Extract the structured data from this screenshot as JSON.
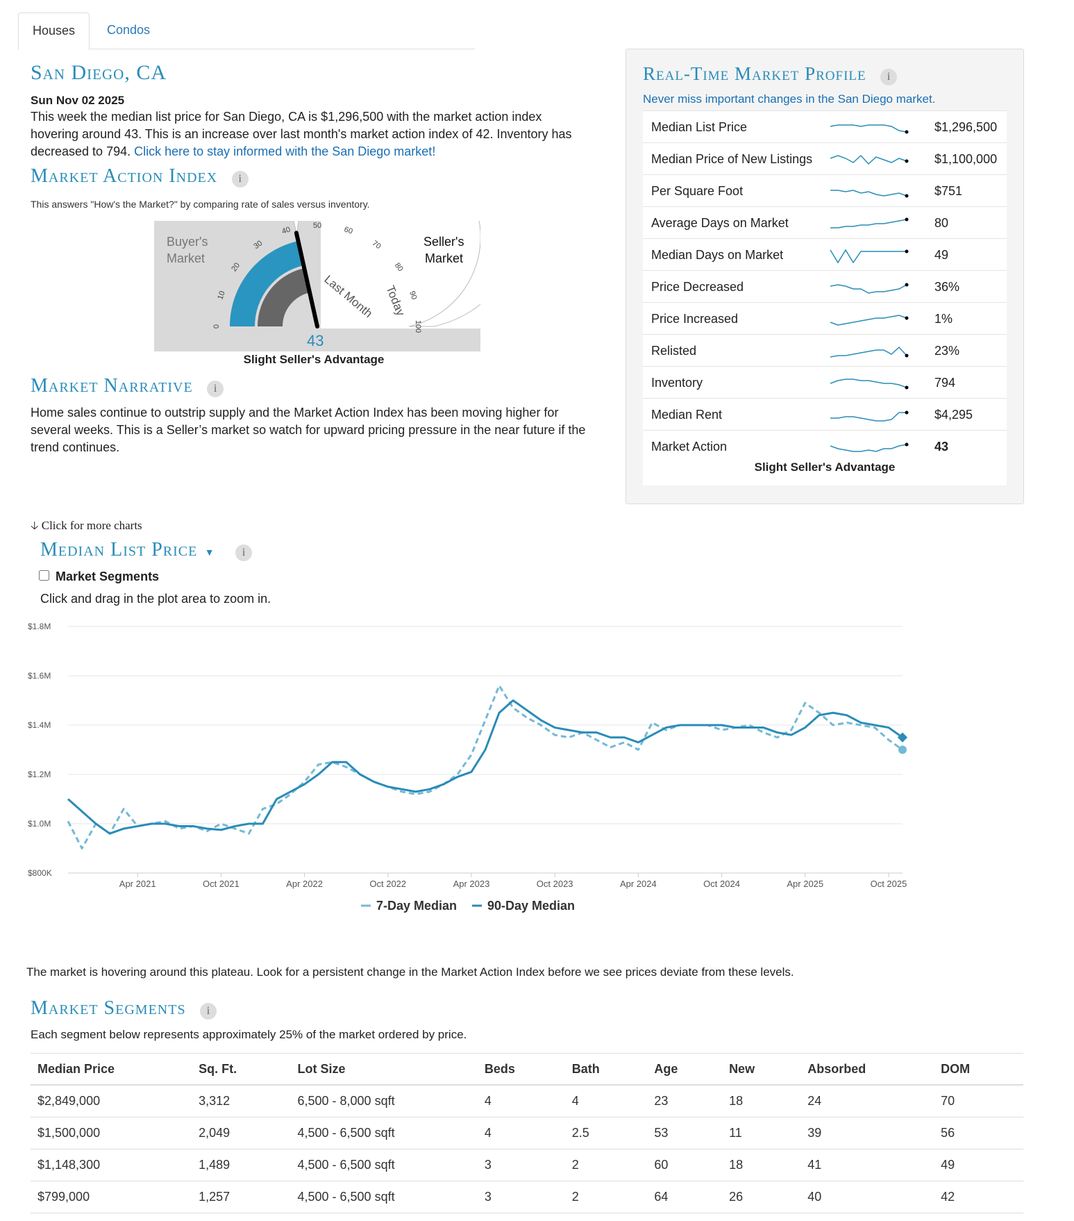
{
  "tabs": [
    "Houses",
    "Condos"
  ],
  "city_title": "San Diego, CA",
  "date": "Sun Nov 02 2025",
  "summary": "This week the median list price for San Diego, CA is $1,296,500 with the market action index hovering around 43. This is an increase over last month's market action index of 42. Inventory has decreased to 794.",
  "summary_link": "Click here to stay informed with the San Diego market!",
  "mai": {
    "title": "Market Action Index",
    "info": "i",
    "subtitle": "This answers \"How's the Market?\" by comparing rate of sales versus inventory.",
    "buyers": [
      "Buyer's",
      "Market"
    ],
    "sellers": [
      "Seller's",
      "Market"
    ],
    "ticks": [
      "0",
      "10",
      "20",
      "30",
      "40",
      "50",
      "60",
      "70",
      "80",
      "90",
      "100"
    ],
    "last_month_label": "Last Month",
    "today_label": "Today",
    "value": 43,
    "value_text": "43",
    "last_month": 42,
    "status": "Slight Seller's Advantage"
  },
  "narrative": {
    "title": "Market Narrative",
    "text": "Home sales continue to outstrip supply and the Market Action Index has been moving higher for several weeks. This is a Seller’s market so watch for upward pricing pressure in the near future if the trend continues."
  },
  "profile": {
    "title": "Real-Time Market Profile",
    "subtitle": "Never miss important changes in the San Diego market.",
    "status": "Slight Seller's Advantage",
    "spark_color": "#2a8cb8",
    "rows": [
      {
        "label": "Median List Price",
        "value": "$1,296,500",
        "spark": [
          6,
          5,
          5,
          5,
          6,
          5,
          5,
          5,
          6,
          9,
          10
        ]
      },
      {
        "label": "Median Price of New Listings",
        "value": "$1,100,000",
        "spark": [
          6,
          4,
          6,
          9,
          4,
          10,
          5,
          7,
          9,
          6,
          8
        ]
      },
      {
        "label": "Per Square Foot",
        "value": "$751",
        "spark": [
          6,
          6,
          7,
          6,
          8,
          7,
          9,
          10,
          9,
          8,
          10
        ]
      },
      {
        "label": "Average Days on Market",
        "value": "80",
        "spark": [
          10,
          10,
          9,
          9,
          8,
          8,
          7,
          7,
          6,
          5,
          4
        ]
      },
      {
        "label": "Median Days on Market",
        "value": "49",
        "spark": [
          3,
          12,
          3,
          12,
          4,
          4,
          4,
          4,
          4,
          4,
          4
        ]
      },
      {
        "label": "Price Decreased",
        "value": "36%",
        "spark": [
          6,
          5,
          6,
          8,
          8,
          11,
          10,
          10,
          9,
          8,
          5
        ]
      },
      {
        "label": "Price Increased",
        "value": "1%",
        "spark": [
          9,
          11,
          10,
          9,
          8,
          7,
          6,
          6,
          5,
          4,
          6
        ]
      },
      {
        "label": "Relisted",
        "value": "23%",
        "spark": [
          11,
          10,
          10,
          9,
          8,
          7,
          6,
          6,
          9,
          4,
          10
        ]
      },
      {
        "label": "Inventory",
        "value": "794",
        "spark": [
          7,
          5,
          4,
          4,
          5,
          5,
          6,
          7,
          7,
          8,
          10
        ]
      },
      {
        "label": "Median Rent",
        "value": "$4,295",
        "spark": [
          9,
          9,
          8,
          8,
          9,
          10,
          11,
          11,
          10,
          5,
          5
        ]
      },
      {
        "label": "Market Action",
        "value": "43",
        "spark": [
          6,
          8,
          9,
          10,
          10,
          9,
          10,
          8,
          8,
          6,
          5
        ]
      }
    ]
  },
  "more_charts": "Click for more charts",
  "mlp": {
    "title": "Median List Price",
    "segments_label": "Market Segments",
    "zoom_hint": "Click and drag in the plot area to zoom in."
  },
  "chart_data": {
    "type": "line",
    "x_ticks": [
      "Apr 2021",
      "Oct 2021",
      "Apr 2022",
      "Oct 2022",
      "Apr 2023",
      "Oct 2023",
      "Apr 2024",
      "Oct 2024",
      "Apr 2025",
      "Oct 2025"
    ],
    "y_ticks": [
      "$800K",
      "$1.0M",
      "$1.2M",
      "$1.4M",
      "$1.6M",
      "$1.8M"
    ],
    "ylim": [
      800000,
      1800000
    ],
    "x_range": [
      "2020-11",
      "2025-11"
    ],
    "series": [
      {
        "name": "7-Day Median",
        "color": "#74b9d6",
        "dashed": true,
        "x": [
          "2020-11",
          "2020-12",
          "2021-01",
          "2021-02",
          "2021-03",
          "2021-04",
          "2021-05",
          "2021-06",
          "2021-07",
          "2021-08",
          "2021-09",
          "2021-10",
          "2021-11",
          "2021-12",
          "2022-01",
          "2022-02",
          "2022-03",
          "2022-04",
          "2022-05",
          "2022-06",
          "2022-07",
          "2022-08",
          "2022-09",
          "2022-10",
          "2022-11",
          "2022-12",
          "2023-01",
          "2023-02",
          "2023-03",
          "2023-04",
          "2023-05",
          "2023-06",
          "2023-07",
          "2023-08",
          "2023-09",
          "2023-10",
          "2023-11",
          "2023-12",
          "2024-01",
          "2024-02",
          "2024-03",
          "2024-04",
          "2024-05",
          "2024-06",
          "2024-07",
          "2024-08",
          "2024-09",
          "2024-10",
          "2024-11",
          "2024-12",
          "2025-01",
          "2025-02",
          "2025-03",
          "2025-04",
          "2025-05",
          "2025-06",
          "2025-07",
          "2025-08",
          "2025-09",
          "2025-10",
          "2025-11"
        ],
        "y": [
          1010000,
          900000,
          1000000,
          960000,
          1060000,
          990000,
          1000000,
          1010000,
          980000,
          990000,
          970000,
          1000000,
          980000,
          960000,
          1060000,
          1080000,
          1120000,
          1170000,
          1240000,
          1250000,
          1230000,
          1200000,
          1170000,
          1150000,
          1130000,
          1120000,
          1130000,
          1160000,
          1200000,
          1280000,
          1420000,
          1560000,
          1470000,
          1430000,
          1400000,
          1360000,
          1350000,
          1370000,
          1340000,
          1310000,
          1330000,
          1300000,
          1410000,
          1380000,
          1400000,
          1400000,
          1400000,
          1380000,
          1390000,
          1400000,
          1370000,
          1350000,
          1380000,
          1490000,
          1450000,
          1400000,
          1410000,
          1400000,
          1390000,
          1340000,
          1300000
        ]
      },
      {
        "name": "90-Day Median",
        "color": "#2a8cb8",
        "dashed": false,
        "x": [
          "2020-11",
          "2020-12",
          "2021-01",
          "2021-02",
          "2021-03",
          "2021-04",
          "2021-05",
          "2021-06",
          "2021-07",
          "2021-08",
          "2021-09",
          "2021-10",
          "2021-11",
          "2021-12",
          "2022-01",
          "2022-02",
          "2022-03",
          "2022-04",
          "2022-05",
          "2022-06",
          "2022-07",
          "2022-08",
          "2022-09",
          "2022-10",
          "2022-11",
          "2022-12",
          "2023-01",
          "2023-02",
          "2023-03",
          "2023-04",
          "2023-05",
          "2023-06",
          "2023-07",
          "2023-08",
          "2023-09",
          "2023-10",
          "2023-11",
          "2023-12",
          "2024-01",
          "2024-02",
          "2024-03",
          "2024-04",
          "2024-05",
          "2024-06",
          "2024-07",
          "2024-08",
          "2024-09",
          "2024-10",
          "2024-11",
          "2024-12",
          "2025-01",
          "2025-02",
          "2025-03",
          "2025-04",
          "2025-05",
          "2025-06",
          "2025-07",
          "2025-08",
          "2025-09",
          "2025-10",
          "2025-11"
        ],
        "y": [
          1100000,
          1050000,
          1000000,
          960000,
          980000,
          990000,
          1000000,
          1000000,
          990000,
          990000,
          980000,
          975000,
          990000,
          1000000,
          1000000,
          1100000,
          1130000,
          1160000,
          1200000,
          1250000,
          1250000,
          1200000,
          1170000,
          1150000,
          1140000,
          1130000,
          1140000,
          1160000,
          1190000,
          1210000,
          1300000,
          1450000,
          1500000,
          1460000,
          1420000,
          1390000,
          1380000,
          1370000,
          1370000,
          1350000,
          1350000,
          1330000,
          1360000,
          1390000,
          1400000,
          1400000,
          1400000,
          1400000,
          1390000,
          1390000,
          1390000,
          1370000,
          1360000,
          1390000,
          1440000,
          1450000,
          1440000,
          1410000,
          1400000,
          1390000,
          1350000
        ]
      }
    ],
    "legend": [
      "7-Day Median",
      "90-Day Median"
    ],
    "legend_position": "bottom",
    "grid": true
  },
  "plateau_text": "The market is hovering around this plateau. Look for a persistent change in the Market Action Index before we see prices deviate from these levels.",
  "segments": {
    "title": "Market Segments",
    "subtitle": "Each segment below represents approximately 25% of the market ordered by price.",
    "columns": [
      "Median Price",
      "Sq. Ft.",
      "Lot Size",
      "Beds",
      "Bath",
      "Age",
      "New",
      "Absorbed",
      "DOM"
    ],
    "rows": [
      [
        "$2,849,000",
        "3,312",
        "6,500 - 8,000 sqft",
        "4",
        "4",
        "23",
        "18",
        "24",
        "70"
      ],
      [
        "$1,500,000",
        "2,049",
        "4,500 - 6,500 sqft",
        "4",
        "2.5",
        "53",
        "11",
        "39",
        "56"
      ],
      [
        "$1,148,300",
        "1,489",
        "4,500 - 6,500 sqft",
        "3",
        "2",
        "60",
        "18",
        "41",
        "49"
      ],
      [
        "$799,000",
        "1,257",
        "4,500 - 6,500 sqft",
        "3",
        "2",
        "64",
        "26",
        "40",
        "42"
      ]
    ]
  }
}
